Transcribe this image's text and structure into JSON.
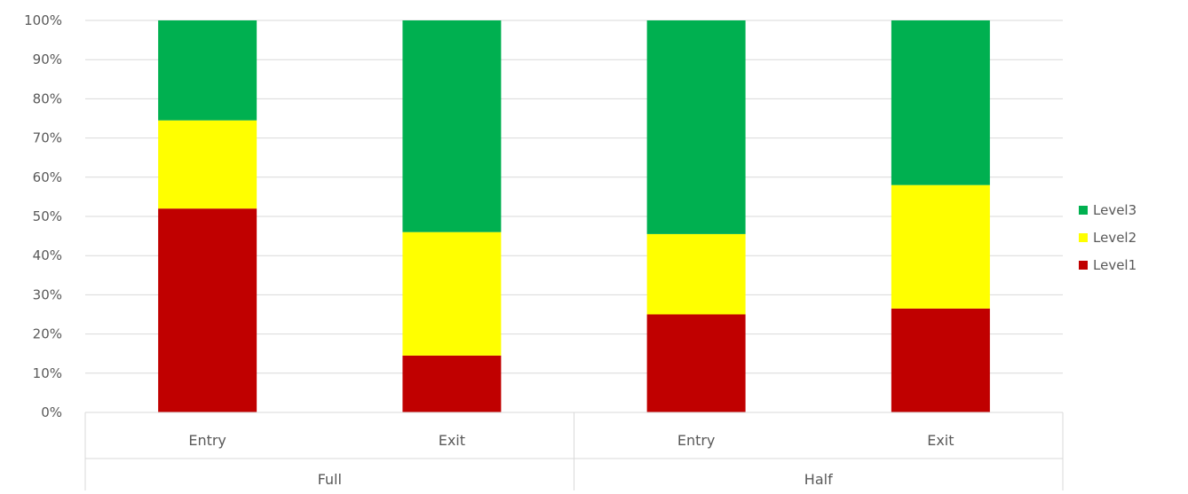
{
  "chart_data": {
    "type": "bar",
    "stacked": true,
    "percent_stacked": true,
    "title": "",
    "xlabel": "",
    "ylabel": "",
    "ylim": [
      0,
      100
    ],
    "y_ticks": [
      "0%",
      "10%",
      "20%",
      "30%",
      "40%",
      "50%",
      "60%",
      "70%",
      "80%",
      "90%",
      "100%"
    ],
    "grid": true,
    "legend_position": "right",
    "groups": [
      {
        "label": "Full",
        "categories": [
          "Entry",
          "Exit"
        ]
      },
      {
        "label": "Half",
        "categories": [
          "Entry",
          "Exit"
        ]
      }
    ],
    "series": [
      {
        "name": "Level1",
        "color": "#c00000",
        "values": [
          52,
          14.5,
          25,
          26.5
        ]
      },
      {
        "name": "Level2",
        "color": "#ffff00",
        "values": [
          22.5,
          31.5,
          20.5,
          31.5
        ]
      },
      {
        "name": "Level3",
        "color": "#00b050",
        "values": [
          25.5,
          54,
          54.5,
          42
        ]
      }
    ],
    "legend_order": [
      "Level3",
      "Level2",
      "Level1"
    ]
  },
  "colors": {
    "grid": "#d9d9d9",
    "text": "#595959",
    "axis": "#d9d9d9"
  }
}
